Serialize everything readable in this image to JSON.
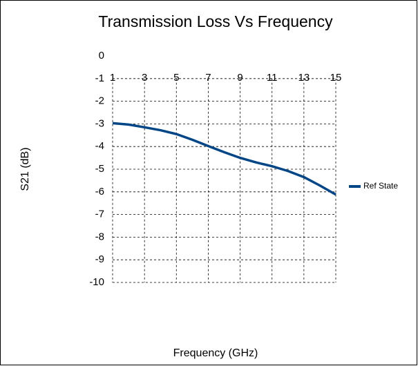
{
  "chart_data": {
    "type": "line",
    "title": "Transmission Loss Vs Frequency",
    "x_label": "Frequency (GHz)",
    "y_label": "S21 (dB)",
    "x": [
      1,
      2,
      3,
      4,
      5,
      6,
      7,
      8,
      9,
      10,
      11,
      12,
      13,
      14,
      15
    ],
    "series": [
      {
        "name": "Ref State",
        "color": "#004586",
        "values": [
          -2.97,
          -3.03,
          -3.15,
          -3.28,
          -3.45,
          -3.7,
          -3.98,
          -4.25,
          -4.5,
          -4.7,
          -4.87,
          -5.08,
          -5.35,
          -5.72,
          -6.12
        ]
      }
    ],
    "xlim": [
      1,
      15
    ],
    "xticks": [
      1,
      3,
      5,
      7,
      9,
      11,
      13,
      15
    ],
    "ylim": [
      -10,
      0
    ],
    "yticks": [
      0,
      -1,
      -2,
      -3,
      -4,
      -5,
      -6,
      -7,
      -8,
      -9,
      -10
    ],
    "grid": true,
    "legend": "right"
  }
}
